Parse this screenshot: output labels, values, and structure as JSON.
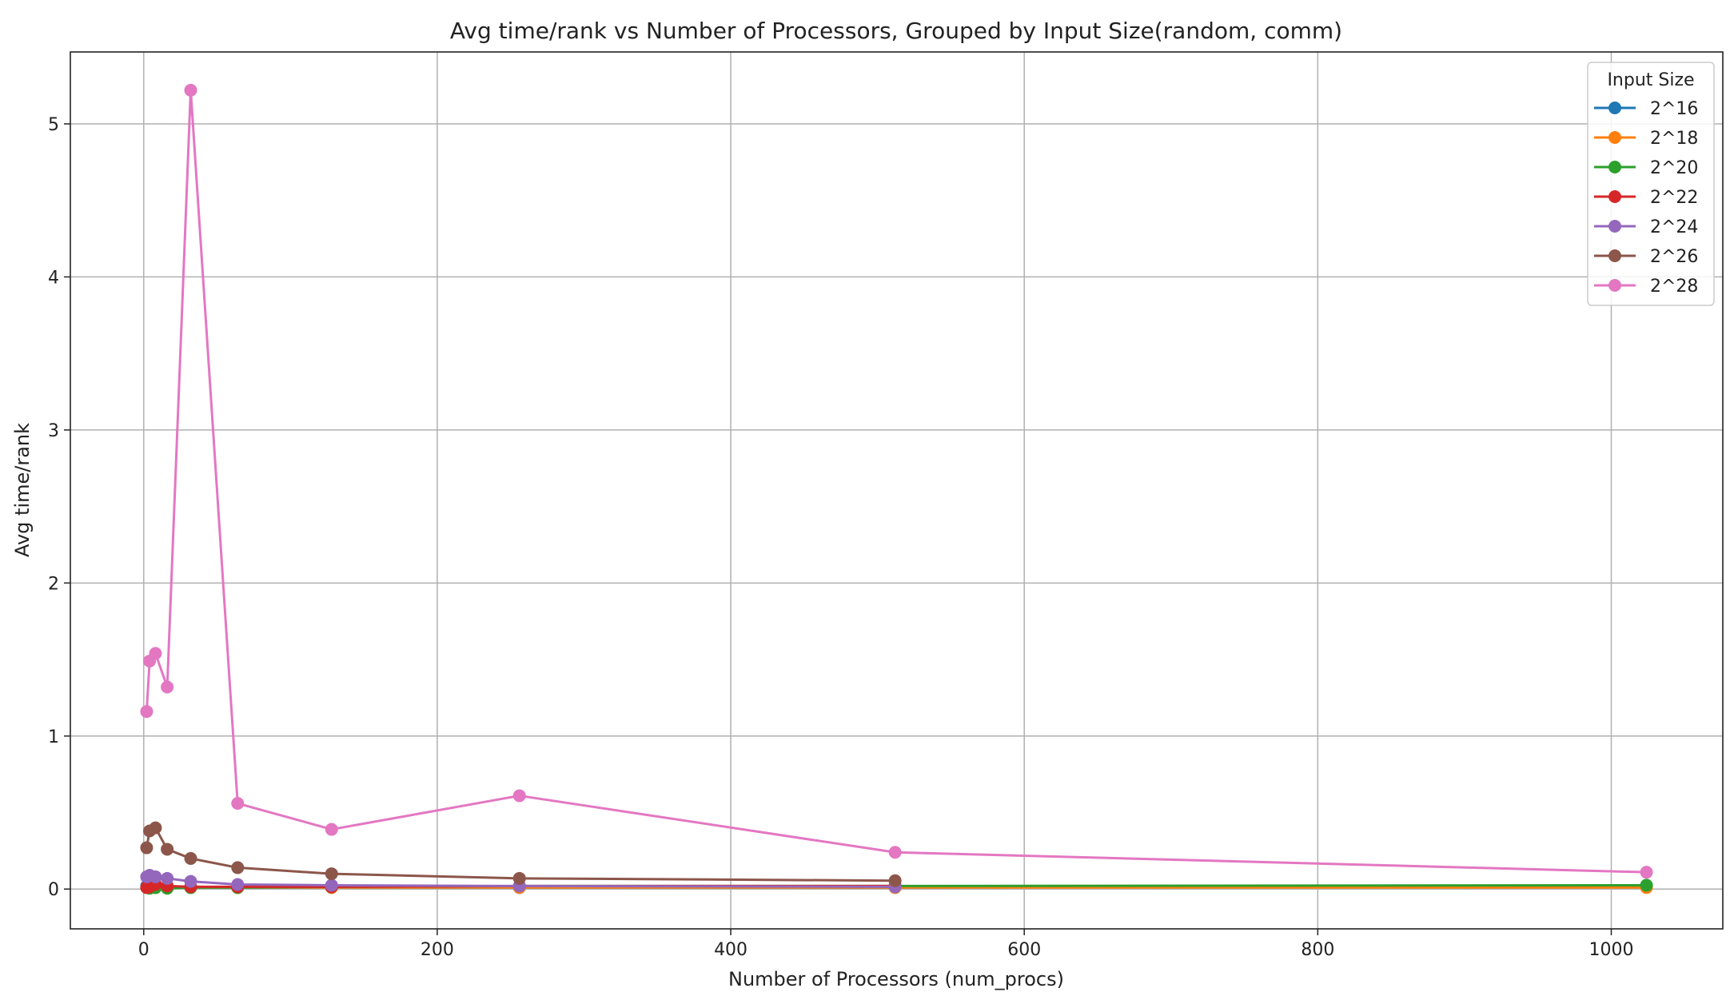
{
  "chart_data": {
    "type": "line",
    "title": "Avg time/rank vs Number of Processors, Grouped by Input Size(random, comm)",
    "xlabel": "Number of Processors (num_procs)",
    "ylabel": "Avg time/rank",
    "xlim": [
      -50,
      1076
    ],
    "ylim": [
      -0.26,
      5.47
    ],
    "xticks": [
      0,
      200,
      400,
      600,
      800,
      1000
    ],
    "yticks": [
      0,
      1,
      2,
      3,
      4,
      5
    ],
    "grid": true,
    "legend": {
      "title": "Input Size",
      "placement": "top-right"
    },
    "series": [
      {
        "name": "2^16",
        "color": "#1f77b4",
        "x": [
          2,
          4,
          8,
          16,
          32,
          64,
          128,
          256,
          512,
          1024
        ],
        "y": [
          0.02,
          0.015,
          0.01,
          0.01,
          0.01,
          0.01,
          0.01,
          0.01,
          0.01,
          0.02
        ]
      },
      {
        "name": "2^18",
        "color": "#ff7f0e",
        "x": [
          2,
          4,
          8,
          16,
          32,
          64,
          128,
          256,
          512,
          1024
        ],
        "y": [
          0.01,
          0.01,
          0.01,
          0.01,
          0.01,
          0.01,
          0.01,
          0.01,
          0.01,
          0.01
        ]
      },
      {
        "name": "2^20",
        "color": "#2ca02c",
        "x": [
          2,
          4,
          8,
          16,
          32,
          64,
          128,
          256,
          512,
          1024
        ],
        "y": [
          0.01,
          0.005,
          0.01,
          0.005,
          0.01,
          0.01,
          0.015,
          0.02,
          0.02,
          0.025
        ]
      },
      {
        "name": "2^22",
        "color": "#d62728",
        "x": [
          2,
          4,
          8,
          16,
          32,
          64,
          128,
          256,
          512
        ],
        "y": [
          0.01,
          0.015,
          0.03,
          0.02,
          0.015,
          0.015,
          0.015,
          0.02,
          0.02
        ]
      },
      {
        "name": "2^24",
        "color": "#9467bd",
        "x": [
          2,
          4,
          8,
          16,
          32,
          64,
          128,
          256,
          512
        ],
        "y": [
          0.08,
          0.09,
          0.08,
          0.07,
          0.05,
          0.03,
          0.025,
          0.02,
          0.015
        ]
      },
      {
        "name": "2^26",
        "color": "#8c564b",
        "x": [
          2,
          4,
          8,
          16,
          32,
          64,
          128,
          256,
          512
        ],
        "y": [
          0.27,
          0.38,
          0.4,
          0.26,
          0.2,
          0.14,
          0.1,
          0.07,
          0.055
        ]
      },
      {
        "name": "2^28",
        "color": "#e377c2",
        "x": [
          2,
          4,
          8,
          16,
          32,
          64,
          128,
          256,
          512,
          1024
        ],
        "y": [
          1.16,
          1.49,
          1.54,
          1.32,
          5.22,
          0.56,
          0.39,
          0.61,
          0.24,
          0.11
        ]
      }
    ]
  }
}
